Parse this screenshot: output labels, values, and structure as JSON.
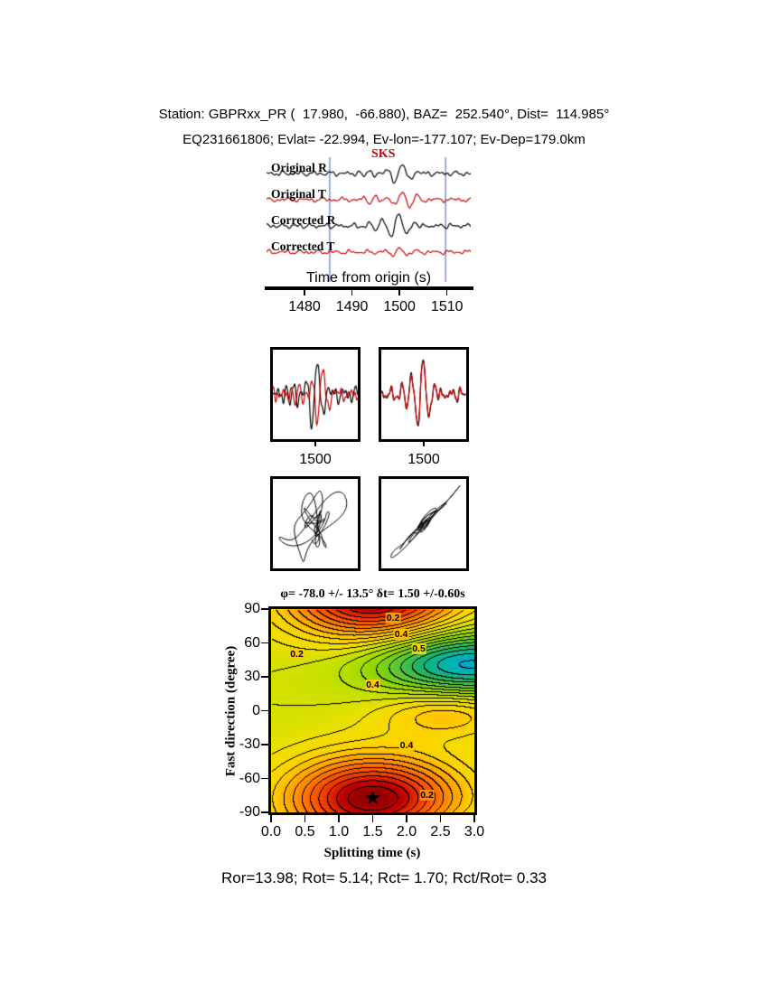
{
  "header": {
    "line1": "Station: GBPRxx_PR (  17.980,  -66.880), BAZ=  252.540°, Dist=  114.985°",
    "line2": "EQ231661806; Evlat= -22.994, Ev-lon=-177.107; Ev-Dep=179.0km"
  },
  "waveform_panel": {
    "phase_label": "SKS",
    "phase_label_color": "#cc0000",
    "xlabel": "Time from origin (s)",
    "xticks": [
      "1480",
      "1490",
      "1500",
      "1510"
    ],
    "time_range_s": [
      1472,
      1515
    ],
    "window_lines_s": [
      1485.3,
      1509.7
    ],
    "window_line_color": "#6b7fd7",
    "traces": [
      {
        "label": "Original R",
        "color": "#000000"
      },
      {
        "label": "Original T",
        "color": "#cc0000"
      },
      {
        "label": "Corrected R",
        "color": "#000000"
      },
      {
        "label": "Corrected T",
        "color": "#cc0000"
      }
    ]
  },
  "zoom_boxes": {
    "tick_label": "1500",
    "wave_colors": [
      "#000000",
      "#cc0000"
    ]
  },
  "particle_motion": {
    "color": "#000000"
  },
  "chart_data": {
    "type": "heatmap",
    "title": "φ= -78.0 +/- 13.5° δt= 1.50 +/-0.60s",
    "xlabel": "Splitting time (s)",
    "ylabel": "Fast direction (degree)",
    "xlim": [
      0.0,
      3.0
    ],
    "ylim": [
      -90,
      90
    ],
    "xticks": [
      "0.0",
      "0.5",
      "1.0",
      "1.5",
      "2.0",
      "2.5",
      "3.0"
    ],
    "yticks": [
      "90",
      "60",
      "30",
      "0",
      "-30",
      "-60",
      "-90"
    ],
    "best_fit": {
      "x": 1.5,
      "y": -78,
      "marker": "star",
      "phi_deg": -78.0,
      "phi_err_deg": 13.5,
      "dt_s": 1.5,
      "dt_err_s": 0.6
    },
    "contour_interval": 0.04,
    "contour_labels": [
      {
        "text": "0.2",
        "x": 1.8,
        "y": 82,
        "bg": "#ff9900"
      },
      {
        "text": "0.4",
        "x": 1.92,
        "y": 68,
        "bg": "#ffbb00"
      },
      {
        "text": "0.5",
        "x": 2.18,
        "y": 55,
        "bg": "#e8d800"
      },
      {
        "text": "0.2",
        "x": 0.38,
        "y": 50,
        "bg": "#ffcc00"
      },
      {
        "text": "0.4",
        "x": 1.5,
        "y": 23,
        "bg": "#ffcc00"
      },
      {
        "text": "0.4",
        "x": 2.0,
        "y": -31,
        "bg": "#ffcc00"
      },
      {
        "text": "0.2",
        "x": 2.3,
        "y": -75,
        "bg": "#ff8800"
      }
    ],
    "colormap_stops": [
      [
        0.0,
        "#8b0000"
      ],
      [
        0.06,
        "#c00000"
      ],
      [
        0.12,
        "#e83200"
      ],
      [
        0.2,
        "#ff6400"
      ],
      [
        0.28,
        "#ff9b00"
      ],
      [
        0.36,
        "#ffd000"
      ],
      [
        0.44,
        "#f0e000"
      ],
      [
        0.5,
        "#c8e000"
      ],
      [
        0.58,
        "#96d800"
      ],
      [
        0.66,
        "#5ec832"
      ],
      [
        0.74,
        "#1eb464"
      ],
      [
        0.82,
        "#00b4b4"
      ],
      [
        0.9,
        "#0096e6"
      ],
      [
        1.0,
        "#3c64ff"
      ]
    ],
    "surface_model": {
      "base": 0.48,
      "wells": [
        {
          "amp": -0.48,
          "dt": 1.5,
          "dt_var": 1.6,
          "phi": -78,
          "phi_sigma": 38
        },
        {
          "amp": 0.38,
          "dt": 2.9,
          "dt_var": 2.0,
          "phi": 42,
          "phi_sigma": 28
        },
        {
          "amp": -0.16,
          "dt": 2.6,
          "dt_var": 1.0,
          "phi": -2,
          "phi_sigma": 22
        }
      ]
    }
  },
  "footer": {
    "text": "Ror=13.98; Rot= 5.14; Rct= 1.70; Rct/Rot= 0.33"
  }
}
